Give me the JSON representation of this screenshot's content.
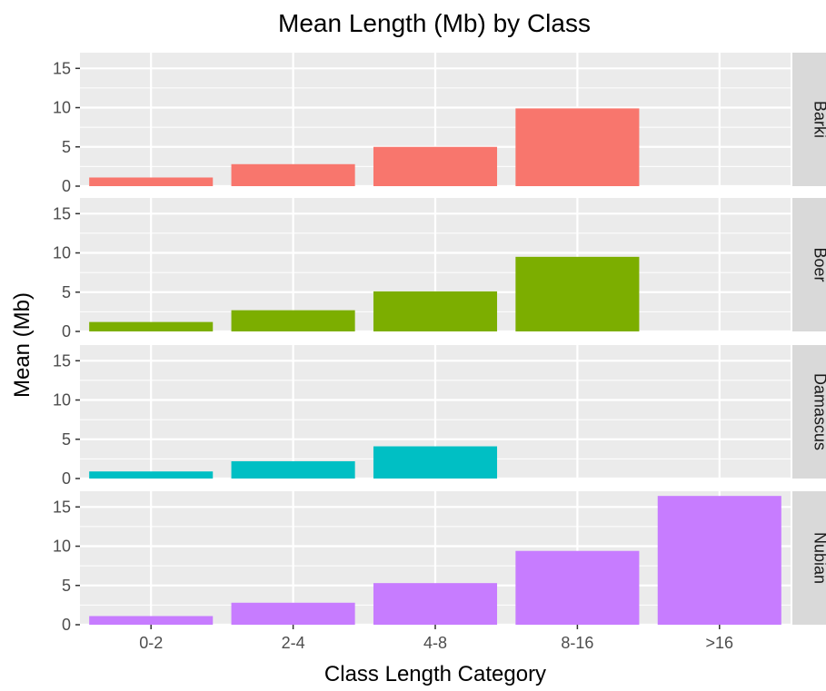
{
  "chart_data": {
    "type": "bar",
    "title": "Mean Length (Mb) by Class",
    "xlabel": "Class Length Category",
    "ylabel": "Mean (Mb)",
    "categories": [
      "0-2",
      "2-4",
      "4-8",
      "8-16",
      ">16"
    ],
    "ylim": [
      0,
      17
    ],
    "yticks": [
      0,
      5,
      10,
      15
    ],
    "grid": true,
    "facets": [
      {
        "name": "Barki",
        "color": "#F8766D",
        "values": [
          1.1,
          2.8,
          5.0,
          9.9,
          null
        ]
      },
      {
        "name": "Boer",
        "color": "#7CAE00",
        "values": [
          1.2,
          2.7,
          5.1,
          9.5,
          null
        ]
      },
      {
        "name": "Damascus",
        "color": "#00BFC4",
        "values": [
          0.9,
          2.2,
          4.1,
          null,
          null
        ]
      },
      {
        "name": "Nubian",
        "color": "#C77CFF",
        "values": [
          1.1,
          2.8,
          5.3,
          9.4,
          16.4
        ]
      }
    ]
  }
}
